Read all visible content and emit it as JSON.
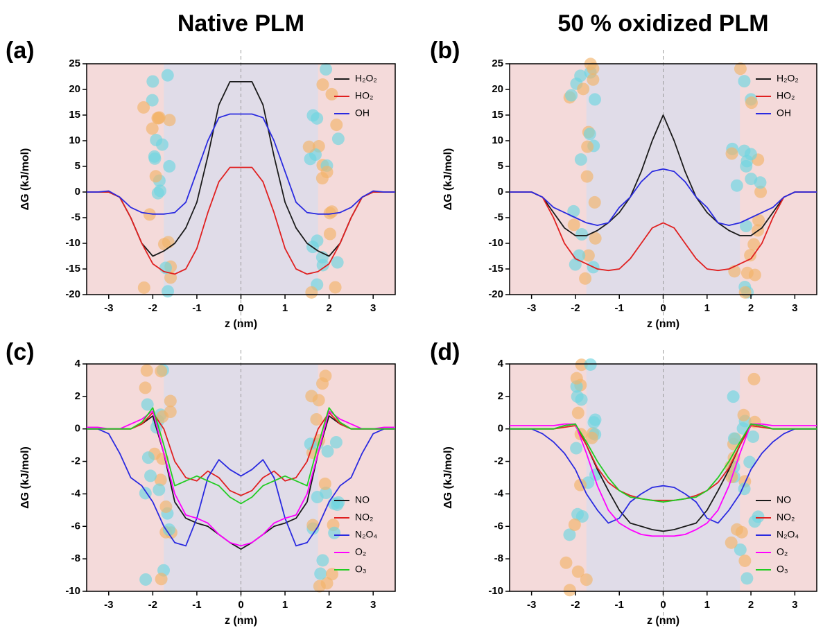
{
  "column_titles": [
    "Native PLM",
    "50 % oxidized PLM"
  ],
  "chart_data": [
    {
      "type": "line",
      "panel_label": "(a)",
      "xlabel": "z (nm)",
      "ylabel": "ΔG (kJ/mol)",
      "legend": "upper right",
      "x": [
        -3.5,
        -3.25,
        -3,
        -2.75,
        -2.5,
        -2.25,
        -2,
        -1.75,
        -1.5,
        -1.25,
        -1,
        -0.75,
        -0.5,
        -0.25,
        0,
        0.25,
        0.5,
        0.75,
        1,
        1.25,
        1.5,
        1.75,
        2,
        2.25,
        2.5,
        2.75,
        3,
        3.25,
        3.5
      ],
      "xlim": [
        -3.5,
        3.5
      ],
      "xticks": [
        -3,
        -2,
        -1,
        0,
        1,
        2,
        3
      ],
      "ylim": [
        -20,
        25
      ],
      "yticks": [
        -20,
        -15,
        -10,
        -5,
        0,
        5,
        10,
        15,
        20,
        25
      ],
      "series": [
        {
          "name": "H₂O₂",
          "color": "#1a1a1a",
          "values": [
            0,
            0,
            0,
            -1,
            -5,
            -10,
            -12.5,
            -11.5,
            -10,
            -7,
            -2,
            7,
            17,
            21.5,
            21.5,
            21.5,
            17,
            7,
            -2,
            -7,
            -10,
            -11.5,
            -12.5,
            -10,
            -5,
            -1,
            0,
            0,
            0
          ]
        },
        {
          "name": "HO₂",
          "color": "#e02020",
          "values": [
            0,
            0,
            0,
            -1,
            -5,
            -10,
            -14,
            -15.5,
            -16,
            -15,
            -11,
            -4,
            2,
            4.8,
            4.8,
            4.8,
            2,
            -4,
            -11,
            -15,
            -16,
            -15.5,
            -14,
            -10,
            -5,
            -1,
            0,
            0,
            0
          ]
        },
        {
          "name": "OH",
          "color": "#2a2ae0",
          "values": [
            0,
            0,
            0.2,
            -1,
            -3,
            -4,
            -4.3,
            -4.3,
            -4,
            -2,
            4,
            10,
            14.5,
            15.2,
            15.2,
            15.2,
            14.5,
            10,
            4,
            -2,
            -4,
            -4.3,
            -4.3,
            -4,
            -3,
            -1,
            0.2,
            0,
            0
          ]
        }
      ]
    },
    {
      "type": "line",
      "panel_label": "(b)",
      "xlabel": "z (nm)",
      "ylabel": "ΔG (kJ/mol)",
      "legend": "upper right",
      "x": [
        -3.5,
        -3.25,
        -3,
        -2.75,
        -2.5,
        -2.25,
        -2,
        -1.75,
        -1.5,
        -1.25,
        -1,
        -0.75,
        -0.5,
        -0.25,
        0,
        0.25,
        0.5,
        0.75,
        1,
        1.25,
        1.5,
        1.75,
        2,
        2.25,
        2.5,
        2.75,
        3,
        3.25,
        3.5
      ],
      "xlim": [
        -3.5,
        3.5
      ],
      "xticks": [
        -3,
        -2,
        -1,
        0,
        1,
        2,
        3
      ],
      "ylim": [
        -20,
        25
      ],
      "yticks": [
        -20,
        -15,
        -10,
        -5,
        0,
        5,
        10,
        15,
        20,
        25
      ],
      "series": [
        {
          "name": "H₂O₂",
          "color": "#1a1a1a",
          "values": [
            0,
            0,
            0,
            -1,
            -4,
            -7,
            -8.5,
            -8.5,
            -7.5,
            -6,
            -4,
            -1,
            4,
            10,
            15,
            10,
            4,
            -1,
            -4,
            -6,
            -7.5,
            -8.5,
            -8.5,
            -7,
            -4,
            -1,
            0,
            0,
            0
          ]
        },
        {
          "name": "HO₂",
          "color": "#e02020",
          "values": [
            0,
            0,
            0,
            -1,
            -5,
            -10,
            -13,
            -14,
            -15,
            -15.3,
            -15,
            -13,
            -10,
            -7,
            -6,
            -7,
            -10,
            -13,
            -15,
            -15.3,
            -15,
            -14,
            -13,
            -10,
            -5,
            -1,
            0,
            0,
            0
          ]
        },
        {
          "name": "OH",
          "color": "#2a2ae0",
          "values": [
            0,
            0,
            0,
            -1,
            -3,
            -4,
            -5,
            -6,
            -6.5,
            -6,
            -3,
            -1,
            2,
            4,
            4.5,
            4,
            2,
            -1,
            -3,
            -6,
            -6.5,
            -6,
            -5,
            -4,
            -3,
            -1,
            0,
            0,
            0
          ]
        }
      ]
    },
    {
      "type": "line",
      "panel_label": "(c)",
      "xlabel": "z (nm)",
      "ylabel": "ΔG (kJ/mol)",
      "legend": "lower right",
      "x": [
        -3.5,
        -3.25,
        -3,
        -2.75,
        -2.5,
        -2.25,
        -2,
        -1.75,
        -1.5,
        -1.25,
        -1,
        -0.75,
        -0.5,
        -0.25,
        0,
        0.25,
        0.5,
        0.75,
        1,
        1.25,
        1.5,
        1.75,
        2,
        2.25,
        2.5,
        2.75,
        3,
        3.25,
        3.5
      ],
      "xlim": [
        -3.5,
        3.5
      ],
      "xticks": [
        -3,
        -2,
        -1,
        0,
        1,
        2,
        3
      ],
      "ylim": [
        -10,
        4
      ],
      "yticks": [
        -10,
        -8,
        -6,
        -4,
        -2,
        0,
        2,
        4
      ],
      "series": [
        {
          "name": "NO",
          "color": "#1a1a1a",
          "values": [
            0,
            0,
            0,
            0,
            0,
            0.3,
            0.8,
            -1.5,
            -4.5,
            -5.5,
            -5.8,
            -6,
            -6.5,
            -7,
            -7.4,
            -7,
            -6.5,
            -6,
            -5.8,
            -5.5,
            -4.5,
            -1.5,
            0.8,
            0.3,
            0,
            0,
            0,
            0,
            0
          ]
        },
        {
          "name": "NO₂",
          "color": "#e02020",
          "values": [
            0,
            0,
            0,
            0,
            0,
            0.3,
            1,
            0,
            -2,
            -3,
            -3.2,
            -2.6,
            -3,
            -3.8,
            -4.1,
            -3.8,
            -3,
            -2.6,
            -3.2,
            -3,
            -2,
            0,
            1,
            0.3,
            0,
            0,
            0,
            0,
            0
          ]
        },
        {
          "name": "N₂O₄",
          "color": "#2a2ae0",
          "values": [
            0,
            0,
            -0.3,
            -1.5,
            -3,
            -3.5,
            -4.5,
            -6,
            -7,
            -7.2,
            -5.5,
            -3,
            -1.9,
            -2.5,
            -2.9,
            -2.5,
            -1.9,
            -3,
            -5.5,
            -7.2,
            -7,
            -6,
            -4.5,
            -3.5,
            -3,
            -1.5,
            -0.3,
            0,
            0
          ]
        },
        {
          "name": "O₂",
          "color": "#ff00ff",
          "values": [
            0.1,
            0.1,
            0,
            0,
            0.3,
            0.6,
            1.1,
            -1.5,
            -4,
            -5.3,
            -5.5,
            -5.8,
            -6.5,
            -7,
            -7.2,
            -7,
            -6.5,
            -5.8,
            -5.5,
            -5.3,
            -4,
            -1.5,
            1.1,
            0.6,
            0.3,
            0,
            0,
            0.1,
            0.1
          ]
        },
        {
          "name": "O₃",
          "color": "#22cc22",
          "values": [
            0,
            0,
            0,
            0,
            0,
            0.4,
            1.3,
            -1,
            -3.5,
            -3.2,
            -2.9,
            -3.2,
            -3.5,
            -4.2,
            -4.6,
            -4.2,
            -3.5,
            -3.2,
            -2.9,
            -3.2,
            -3.5,
            -1,
            1.3,
            0.4,
            0,
            0,
            0,
            0,
            0
          ]
        }
      ]
    },
    {
      "type": "line",
      "panel_label": "(d)",
      "xlabel": "z (nm)",
      "ylabel": "ΔG (kJ/mol)",
      "legend": "lower right",
      "x": [
        -3.5,
        -3.25,
        -3,
        -2.75,
        -2.5,
        -2.25,
        -2,
        -1.75,
        -1.5,
        -1.25,
        -1,
        -0.75,
        -0.5,
        -0.25,
        0,
        0.25,
        0.5,
        0.75,
        1,
        1.25,
        1.5,
        1.75,
        2,
        2.25,
        2.5,
        2.75,
        3,
        3.25,
        3.5
      ],
      "xlim": [
        -3.5,
        3.5
      ],
      "xticks": [
        -3,
        -2,
        -1,
        0,
        1,
        2,
        3
      ],
      "ylim": [
        -10,
        4
      ],
      "yticks": [
        -10,
        -8,
        -6,
        -4,
        -2,
        0,
        2,
        4
      ],
      "series": [
        {
          "name": "NO",
          "color": "#1a1a1a",
          "values": [
            0,
            0,
            0,
            0,
            0,
            0.2,
            0.3,
            -1,
            -2.5,
            -3.8,
            -5,
            -5.8,
            -6,
            -6.2,
            -6.3,
            -6.2,
            -6,
            -5.8,
            -5,
            -3.8,
            -2.5,
            -1,
            0.3,
            0.2,
            0,
            0,
            0,
            0,
            0
          ]
        },
        {
          "name": "NO₂",
          "color": "#e02020",
          "values": [
            0,
            0,
            0,
            0,
            0,
            0.1,
            0.2,
            -1,
            -2.4,
            -3.3,
            -3.8,
            -4.1,
            -4.3,
            -4.4,
            -4.4,
            -4.4,
            -4.3,
            -4.1,
            -3.8,
            -3.3,
            -2.4,
            -1,
            0.2,
            0.1,
            0,
            0,
            0,
            0,
            0
          ]
        },
        {
          "name": "N₂O₄",
          "color": "#2a2ae0",
          "values": [
            0,
            0,
            0,
            -0.3,
            -0.8,
            -1.5,
            -2.5,
            -4,
            -5,
            -5.8,
            -5.5,
            -4.5,
            -4,
            -3.6,
            -3.5,
            -3.6,
            -4,
            -4.5,
            -5.5,
            -5.8,
            -5,
            -4,
            -2.5,
            -1.5,
            -0.8,
            -0.3,
            0,
            0,
            0
          ]
        },
        {
          "name": "O₂",
          "color": "#ff00ff",
          "values": [
            0.2,
            0.2,
            0.2,
            0.2,
            0.2,
            0.3,
            0.3,
            -1.5,
            -3.5,
            -5,
            -5.8,
            -6.2,
            -6.5,
            -6.6,
            -6.6,
            -6.6,
            -6.5,
            -6.2,
            -5.8,
            -5,
            -3.5,
            -1.5,
            0.3,
            0.3,
            0.2,
            0.2,
            0.2,
            0.2,
            0.2
          ]
        },
        {
          "name": "O₃",
          "color": "#22cc22",
          "values": [
            0,
            0,
            0,
            0,
            0,
            0.2,
            0.3,
            -0.8,
            -2,
            -3,
            -3.8,
            -4.2,
            -4.3,
            -4.4,
            -4.5,
            -4.4,
            -4.3,
            -4.2,
            -3.8,
            -3,
            -2,
            -0.8,
            0.3,
            0.2,
            0,
            0,
            0,
            0,
            0
          ]
        }
      ]
    }
  ]
}
